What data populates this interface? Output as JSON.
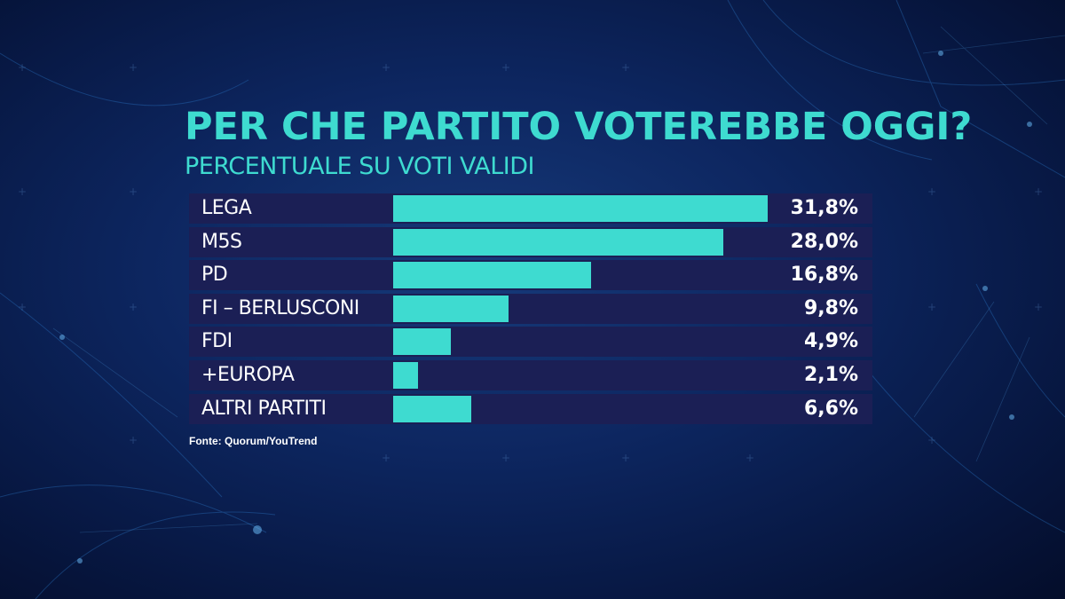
{
  "title": "PER CHE PARTITO VOTEREBBE OGGI?",
  "subtitle": "PERCENTUALE SU VOTI VALIDI",
  "source": "Fonte: Quorum/YouTrend",
  "colors": {
    "bar": "#3edbd0",
    "row_background": "#1b1f55",
    "title": "#3edbd0",
    "text": "#ffffff"
  },
  "chart_data": {
    "type": "bar",
    "orientation": "horizontal",
    "categories": [
      "LEGA",
      "M5S",
      "PD",
      "FI – BERLUSCONI",
      "FDI",
      "+EUROPA",
      "ALTRI PARTITI"
    ],
    "values": [
      31.8,
      28.0,
      16.8,
      9.8,
      4.9,
      2.1,
      6.6
    ],
    "value_labels": [
      "31,8%",
      "28,0%",
      "16,8%",
      "9,8%",
      "4,9%",
      "2,1%",
      "6,6%"
    ],
    "unit": "%",
    "xlim": [
      0,
      31.8
    ],
    "grid": false,
    "legend": "none"
  }
}
